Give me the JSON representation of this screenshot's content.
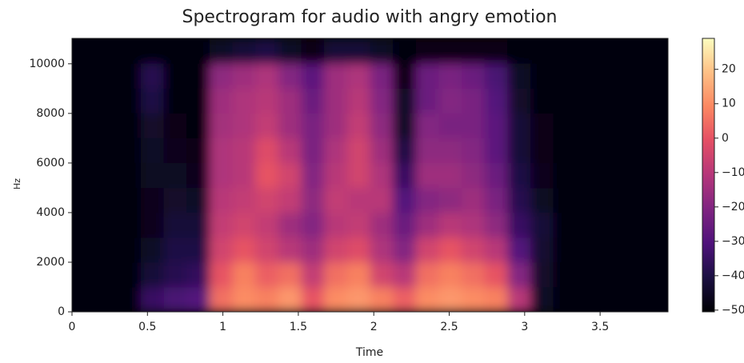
{
  "chart_data": {
    "type": "heatmap",
    "title": "Spectrogram for audio with angry emotion",
    "x_label": "Time",
    "y_label": "Hz",
    "xlim": [
      0,
      3.95
    ],
    "ylim": [
      0,
      11025
    ],
    "xticks": [
      0,
      0.5,
      1,
      1.5,
      2,
      2.5,
      3,
      3.5
    ],
    "yticks": [
      0,
      2000,
      4000,
      6000,
      8000,
      10000
    ],
    "colormap": "magma",
    "clim": [
      -50.5,
      29
    ],
    "cticks": [
      {
        "value": -50,
        "label": "−50"
      },
      {
        "value": -40,
        "label": "−40"
      },
      {
        "value": -30,
        "label": "−30"
      },
      {
        "value": -20,
        "label": "−20"
      },
      {
        "value": -10,
        "label": "−10"
      },
      0,
      10,
      20
    ],
    "values": [
      [
        -50,
        -50,
        -50,
        -50,
        -50,
        -50,
        -50,
        -50,
        -50,
        -50,
        -50
      ],
      [
        -50,
        -50,
        -50,
        -50,
        -50,
        -50,
        -50,
        -50,
        -50,
        -50,
        -50
      ],
      [
        -50,
        -50,
        -50,
        -50,
        -50,
        -50,
        -50,
        -50,
        -50,
        -50,
        -50
      ],
      [
        -35,
        -42,
        -45,
        -47,
        -47,
        -46,
        -45,
        -44,
        -40,
        -38,
        -50
      ],
      [
        -32,
        -38,
        -40,
        -42,
        -44,
        -46,
        -47,
        -48,
        -49,
        -49,
        -50
      ],
      [
        -30,
        -36,
        -40,
        -42,
        -45,
        -47,
        -48,
        -49,
        -49,
        -49,
        -50
      ],
      [
        5,
        0,
        -5,
        -8,
        -10,
        -12,
        -12,
        -14,
        -15,
        -18,
        -45
      ],
      [
        10,
        8,
        0,
        -5,
        -8,
        -10,
        -10,
        -12,
        -12,
        -15,
        -42
      ],
      [
        8,
        2,
        -5,
        -8,
        -5,
        0,
        -2,
        -8,
        -10,
        -12,
        -40
      ],
      [
        12,
        5,
        -10,
        -15,
        -8,
        -5,
        -10,
        -15,
        -15,
        -20,
        -45
      ],
      [
        0,
        -8,
        -15,
        -20,
        -18,
        -20,
        -22,
        -22,
        -25,
        -28,
        -48
      ],
      [
        10,
        5,
        -5,
        -10,
        -8,
        -10,
        -12,
        -15,
        -15,
        -15,
        -42
      ],
      [
        12,
        8,
        -2,
        -8,
        -10,
        -5,
        -5,
        -8,
        -10,
        -12,
        -42
      ],
      [
        8,
        -5,
        -12,
        -15,
        -10,
        -12,
        -15,
        -18,
        -20,
        -22,
        -45
      ],
      [
        2,
        -10,
        -20,
        -25,
        -30,
        -35,
        -40,
        -45,
        -45,
        -48,
        -50
      ],
      [
        10,
        5,
        -5,
        -15,
        -20,
        -15,
        -18,
        -20,
        -25,
        -25,
        -48
      ],
      [
        12,
        8,
        0,
        -10,
        -18,
        -15,
        -18,
        -22,
        -20,
        -22,
        -48
      ],
      [
        10,
        5,
        -5,
        -12,
        -15,
        -18,
        -20,
        -22,
        -22,
        -25,
        -48
      ],
      [
        8,
        0,
        -10,
        -18,
        -22,
        -25,
        -28,
        -28,
        -30,
        -32,
        -48
      ],
      [
        -10,
        -20,
        -30,
        -35,
        -38,
        -40,
        -42,
        -42,
        -44,
        -45,
        -50
      ],
      [
        -45,
        -44,
        -43,
        -42,
        -46,
        -47,
        -48,
        -48,
        -49,
        -49,
        -50
      ],
      [
        -50,
        -50,
        -50,
        -50,
        -50,
        -50,
        -50,
        -50,
        -50,
        -50,
        -50
      ],
      [
        -50,
        -50,
        -50,
        -50,
        -50,
        -50,
        -50,
        -50,
        -50,
        -50,
        -50
      ],
      [
        -50,
        -50,
        -50,
        -50,
        -50,
        -50,
        -50,
        -50,
        -50,
        -50,
        -50
      ],
      [
        -50,
        -50,
        -50,
        -50,
        -50,
        -50,
        -50,
        -50,
        -50,
        -50,
        -50
      ],
      [
        -50,
        -50,
        -50,
        -50,
        -50,
        -50,
        -50,
        -50,
        -50,
        -50,
        -50
      ]
    ]
  }
}
